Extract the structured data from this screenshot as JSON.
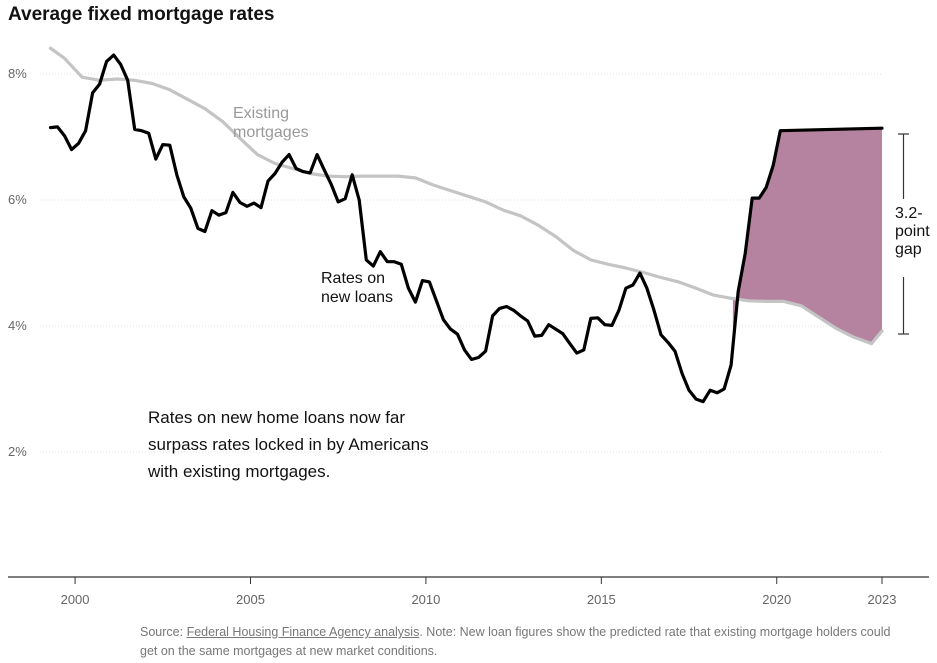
{
  "chart_data": {
    "type": "line",
    "title": "Average fixed mortgage rates",
    "y_ticks": [
      {
        "value": 2,
        "label": "2%"
      },
      {
        "value": 4,
        "label": "4%"
      },
      {
        "value": 6,
        "label": "6%"
      },
      {
        "value": 8,
        "label": "8%"
      }
    ],
    "x_ticks": [
      {
        "value": 2000,
        "label": "2000"
      },
      {
        "value": 2005,
        "label": "2005"
      },
      {
        "value": 2010,
        "label": "2010"
      },
      {
        "value": 2015,
        "label": "2015"
      },
      {
        "value": 2020,
        "label": "2020"
      },
      {
        "value": 2023,
        "label": "2023"
      }
    ],
    "xlim": [
      1999.2,
      2023.0
    ],
    "ylim": [
      0,
      8.8
    ],
    "grid": true,
    "series": [
      {
        "name": "Existing mortgages",
        "color": "#c4c4c4",
        "points": [
          [
            1999.3,
            8.41
          ],
          [
            1999.7,
            8.25
          ],
          [
            2000.2,
            7.95
          ],
          [
            2000.7,
            7.9
          ],
          [
            2001.2,
            7.92
          ],
          [
            2001.7,
            7.9
          ],
          [
            2002.2,
            7.85
          ],
          [
            2002.7,
            7.75
          ],
          [
            2003.2,
            7.6
          ],
          [
            2003.7,
            7.45
          ],
          [
            2004.2,
            7.25
          ],
          [
            2004.7,
            6.98
          ],
          [
            2005.2,
            6.72
          ],
          [
            2005.7,
            6.58
          ],
          [
            2006.2,
            6.5
          ],
          [
            2006.7,
            6.42
          ],
          [
            2007.2,
            6.38
          ],
          [
            2007.7,
            6.37
          ],
          [
            2008.2,
            6.38
          ],
          [
            2008.7,
            6.38
          ],
          [
            2009.2,
            6.38
          ],
          [
            2009.7,
            6.35
          ],
          [
            2010.2,
            6.24
          ],
          [
            2010.7,
            6.15
          ],
          [
            2011.2,
            6.06
          ],
          [
            2011.7,
            5.97
          ],
          [
            2012.2,
            5.84
          ],
          [
            2012.7,
            5.75
          ],
          [
            2013.2,
            5.6
          ],
          [
            2013.7,
            5.42
          ],
          [
            2014.2,
            5.2
          ],
          [
            2014.7,
            5.05
          ],
          [
            2015.2,
            4.98
          ],
          [
            2015.7,
            4.92
          ],
          [
            2016.2,
            4.85
          ],
          [
            2016.7,
            4.77
          ],
          [
            2017.2,
            4.7
          ],
          [
            2017.7,
            4.6
          ],
          [
            2018.2,
            4.49
          ],
          [
            2018.7,
            4.44
          ],
          [
            2019.2,
            4.4
          ],
          [
            2019.7,
            4.39
          ],
          [
            2020.2,
            4.39
          ],
          [
            2020.7,
            4.32
          ],
          [
            2021.2,
            4.14
          ],
          [
            2021.7,
            3.96
          ],
          [
            2022.2,
            3.82
          ],
          [
            2022.7,
            3.72
          ],
          [
            2023.0,
            3.92
          ]
        ]
      },
      {
        "name": "Rates on new loans",
        "color": "#000000",
        "points": [
          [
            1999.3,
            7.15
          ],
          [
            1999.5,
            7.16
          ],
          [
            1999.7,
            7.02
          ],
          [
            1999.9,
            6.8
          ],
          [
            2000.1,
            6.9
          ],
          [
            2000.3,
            7.1
          ],
          [
            2000.5,
            7.7
          ],
          [
            2000.7,
            7.84
          ],
          [
            2000.9,
            8.2
          ],
          [
            2001.1,
            8.3
          ],
          [
            2001.3,
            8.15
          ],
          [
            2001.5,
            7.9
          ],
          [
            2001.7,
            7.12
          ],
          [
            2001.9,
            7.1
          ],
          [
            2002.1,
            7.06
          ],
          [
            2002.3,
            6.65
          ],
          [
            2002.5,
            6.88
          ],
          [
            2002.7,
            6.87
          ],
          [
            2002.9,
            6.4
          ],
          [
            2003.1,
            6.05
          ],
          [
            2003.3,
            5.87
          ],
          [
            2003.5,
            5.55
          ],
          [
            2003.7,
            5.5
          ],
          [
            2003.9,
            5.83
          ],
          [
            2004.1,
            5.76
          ],
          [
            2004.3,
            5.8
          ],
          [
            2004.5,
            6.12
          ],
          [
            2004.7,
            5.96
          ],
          [
            2004.9,
            5.9
          ],
          [
            2005.1,
            5.95
          ],
          [
            2005.3,
            5.88
          ],
          [
            2005.5,
            6.3
          ],
          [
            2005.7,
            6.42
          ],
          [
            2005.9,
            6.6
          ],
          [
            2006.1,
            6.72
          ],
          [
            2006.3,
            6.5
          ],
          [
            2006.5,
            6.45
          ],
          [
            2006.7,
            6.43
          ],
          [
            2006.9,
            6.72
          ],
          [
            2007.1,
            6.48
          ],
          [
            2007.3,
            6.25
          ],
          [
            2007.5,
            5.97
          ],
          [
            2007.7,
            6.02
          ],
          [
            2007.9,
            6.4
          ],
          [
            2008.1,
            6.0
          ],
          [
            2008.3,
            5.05
          ],
          [
            2008.5,
            4.95
          ],
          [
            2008.7,
            5.18
          ],
          [
            2008.9,
            5.02
          ],
          [
            2009.1,
            5.02
          ],
          [
            2009.3,
            4.98
          ],
          [
            2009.5,
            4.6
          ],
          [
            2009.7,
            4.38
          ],
          [
            2009.9,
            4.72
          ],
          [
            2010.1,
            4.7
          ],
          [
            2010.3,
            4.4
          ],
          [
            2010.5,
            4.1
          ],
          [
            2010.7,
            3.95
          ],
          [
            2010.9,
            3.87
          ],
          [
            2011.1,
            3.62
          ],
          [
            2011.3,
            3.47
          ],
          [
            2011.5,
            3.5
          ],
          [
            2011.7,
            3.6
          ],
          [
            2011.9,
            4.16
          ],
          [
            2012.1,
            4.28
          ],
          [
            2012.3,
            4.31
          ],
          [
            2012.5,
            4.25
          ],
          [
            2012.7,
            4.16
          ],
          [
            2012.9,
            4.08
          ],
          [
            2013.1,
            3.84
          ],
          [
            2013.3,
            3.85
          ],
          [
            2013.5,
            4.02
          ],
          [
            2013.7,
            3.95
          ],
          [
            2013.9,
            3.88
          ],
          [
            2014.1,
            3.72
          ],
          [
            2014.3,
            3.57
          ],
          [
            2014.5,
            3.62
          ],
          [
            2014.7,
            4.12
          ],
          [
            2014.9,
            4.13
          ],
          [
            2015.1,
            4.02
          ],
          [
            2015.3,
            4.01
          ],
          [
            2015.5,
            4.25
          ],
          [
            2015.7,
            4.6
          ],
          [
            2015.9,
            4.65
          ],
          [
            2016.1,
            4.84
          ],
          [
            2016.3,
            4.6
          ],
          [
            2016.5,
            4.25
          ],
          [
            2016.7,
            3.86
          ],
          [
            2016.9,
            3.74
          ],
          [
            2017.1,
            3.6
          ],
          [
            2017.3,
            3.25
          ],
          [
            2017.5,
            2.98
          ],
          [
            2017.7,
            2.84
          ],
          [
            2017.9,
            2.8
          ],
          [
            2018.1,
            2.98
          ],
          [
            2018.3,
            2.94
          ],
          [
            2018.5,
            3.0
          ],
          [
            2018.7,
            3.38
          ],
          [
            2018.9,
            4.55
          ],
          [
            2019.1,
            5.15
          ],
          [
            2019.3,
            6.03
          ],
          [
            2019.5,
            6.03
          ],
          [
            2019.7,
            6.2
          ],
          [
            2019.9,
            6.55
          ],
          [
            2020.1,
            7.1
          ],
          [
            2023.0,
            7.14
          ]
        ]
      }
    ],
    "annotations": {
      "existing_label": [
        "Existing",
        "mortgages"
      ],
      "new_label": [
        "Rates on",
        "new loans"
      ],
      "gap_label": [
        "3.2-",
        "point",
        "gap"
      ]
    },
    "gap_fill_color": "#b5839f"
  },
  "note": "Rates on new home loans now far surpass rates locked in by Americans with existing mortgages.",
  "source": {
    "prefix": "Source: ",
    "link_text": "Federal Housing Finance Agency analysis",
    "rest": ". Note: New loan figures show the predicted rate that existing mortgage holders could get on the same mortgages at new market conditions."
  }
}
